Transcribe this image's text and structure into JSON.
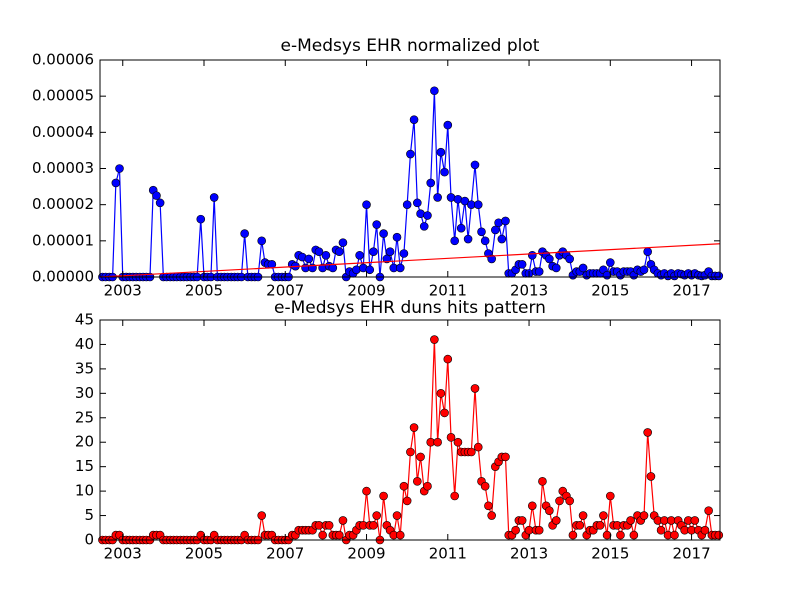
{
  "chart_data": [
    {
      "type": "line",
      "title": "e-Medsys EHR normalized plot",
      "x": [
        2002.5,
        2002.58,
        2002.67,
        2002.75,
        2002.83,
        2002.92,
        2003,
        2003.08,
        2003.17,
        2003.25,
        2003.33,
        2003.42,
        2003.5,
        2003.58,
        2003.67,
        2003.75,
        2003.83,
        2003.92,
        2004,
        2004.08,
        2004.17,
        2004.25,
        2004.33,
        2004.42,
        2004.5,
        2004.58,
        2004.67,
        2004.75,
        2004.83,
        2004.92,
        2005,
        2005.08,
        2005.17,
        2005.25,
        2005.33,
        2005.42,
        2005.5,
        2005.58,
        2005.67,
        2005.75,
        2005.83,
        2005.92,
        2006,
        2006.08,
        2006.17,
        2006.25,
        2006.33,
        2006.42,
        2006.5,
        2006.58,
        2006.67,
        2006.75,
        2006.83,
        2006.92,
        2007,
        2007.08,
        2007.17,
        2007.25,
        2007.33,
        2007.42,
        2007.5,
        2007.58,
        2007.67,
        2007.75,
        2007.83,
        2007.92,
        2008,
        2008.08,
        2008.17,
        2008.25,
        2008.33,
        2008.42,
        2008.5,
        2008.58,
        2008.67,
        2008.75,
        2008.83,
        2008.92,
        2009,
        2009.08,
        2009.17,
        2009.25,
        2009.33,
        2009.42,
        2009.5,
        2009.58,
        2009.67,
        2009.75,
        2009.83,
        2009.92,
        2010,
        2010.08,
        2010.17,
        2010.25,
        2010.33,
        2010.42,
        2010.5,
        2010.58,
        2010.67,
        2010.75,
        2010.83,
        2010.92,
        2011,
        2011.08,
        2011.17,
        2011.25,
        2011.33,
        2011.42,
        2011.5,
        2011.58,
        2011.67,
        2011.75,
        2011.83,
        2011.92,
        2012,
        2012.08,
        2012.17,
        2012.25,
        2012.33,
        2012.42,
        2012.5,
        2012.58,
        2012.67,
        2012.75,
        2012.83,
        2012.92,
        2013,
        2013.08,
        2013.17,
        2013.25,
        2013.33,
        2013.42,
        2013.5,
        2013.58,
        2013.67,
        2013.75,
        2013.83,
        2013.92,
        2014,
        2014.08,
        2014.17,
        2014.25,
        2014.33,
        2014.42,
        2014.5,
        2014.58,
        2014.67,
        2014.75,
        2014.83,
        2014.92,
        2015,
        2015.08,
        2015.17,
        2015.25,
        2015.33,
        2015.42,
        2015.5,
        2015.58,
        2015.67,
        2015.75,
        2015.83,
        2015.92,
        2016,
        2016.08,
        2016.17,
        2016.25,
        2016.33,
        2016.42,
        2016.5,
        2016.58,
        2016.67,
        2016.75,
        2016.83,
        2016.92,
        2017,
        2017.08,
        2017.17,
        2017.25,
        2017.33,
        2017.42,
        2017.5,
        2017.58,
        2017.67
      ],
      "series": [
        {
          "color": "#0000ff",
          "marker": true,
          "values": [
            0,
            0,
            0,
            0,
            2.6e-05,
            3e-05,
            0,
            0,
            0,
            0,
            0,
            0,
            0,
            0,
            0,
            2.4e-05,
            2.25e-05,
            2.05e-05,
            0,
            0,
            0,
            0,
            0,
            0,
            0,
            0,
            0,
            0,
            0,
            1.6e-05,
            0,
            0,
            0,
            2.2e-05,
            0,
            0,
            0,
            0,
            0,
            0,
            0,
            0,
            1.2e-05,
            0,
            0,
            0,
            0,
            1e-05,
            4e-06,
            3.5e-06,
            3.5e-06,
            0,
            0,
            0,
            0,
            0,
            3.5e-06,
            3e-06,
            6e-06,
            5.5e-06,
            2.5e-06,
            5e-06,
            2.5e-06,
            7.5e-06,
            7e-06,
            2.5e-06,
            6e-06,
            3e-06,
            2.5e-06,
            7.5e-06,
            7e-06,
            9.5e-06,
            0,
            1.5e-06,
            1e-06,
            2e-06,
            6e-06,
            2.5e-06,
            2e-05,
            2e-06,
            7e-06,
            1.45e-05,
            0,
            1.2e-05,
            5e-06,
            7e-06,
            2.5e-06,
            1.1e-05,
            2.5e-06,
            6.5e-06,
            2e-05,
            3.4e-05,
            4.35e-05,
            2.05e-05,
            1.75e-05,
            1.4e-05,
            1.7e-05,
            2.6e-05,
            5.15e-05,
            2.2e-05,
            3.45e-05,
            2.9e-05,
            4.2e-05,
            2.2e-05,
            1e-05,
            2.15e-05,
            1.35e-05,
            2.1e-05,
            1.05e-05,
            2e-05,
            3.1e-05,
            2e-05,
            1.25e-05,
            1e-05,
            6.5e-06,
            5e-06,
            1.3e-05,
            1.5e-05,
            1.05e-05,
            1.55e-05,
            1e-06,
            1e-06,
            2e-06,
            3.5e-06,
            3.5e-06,
            1e-06,
            1e-06,
            6e-06,
            1.5e-06,
            1.5e-06,
            7e-06,
            6e-06,
            5e-06,
            3e-06,
            2.5e-06,
            6e-06,
            7e-06,
            6e-06,
            5e-06,
            5e-07,
            1.5e-06,
            1.5e-06,
            2.5e-06,
            5e-07,
            1e-06,
            1e-06,
            1e-06,
            1e-06,
            2e-06,
            5e-07,
            4e-06,
            1.5e-06,
            1.5e-06,
            5e-07,
            1.5e-06,
            1.5e-06,
            1.5e-06,
            5e-07,
            2e-06,
            1.5e-06,
            2e-06,
            7e-06,
            3.5e-06,
            2e-06,
            1e-06,
            5e-07,
            1e-06,
            3e-07,
            1e-06,
            3e-07,
            1e-06,
            8e-07,
            5e-07,
            1e-06,
            5e-07,
            1e-06,
            5e-07,
            3e-07,
            5e-07,
            1.5e-06,
            3e-07,
            3e-07,
            3e-07
          ]
        },
        {
          "color": "#ff0000",
          "marker": false,
          "x": [
            2002.44,
            2017.7
          ],
          "values": [
            0,
            9.2e-06
          ]
        }
      ],
      "xlim": [
        2002.44,
        2017.7
      ],
      "xticks": [
        2003,
        2005,
        2007,
        2009,
        2011,
        2013,
        2015,
        2017
      ],
      "ylim": [
        0,
        6e-05
      ],
      "yticks": [
        {
          "value": 0,
          "label": "0.00000"
        },
        1e-05,
        2e-05,
        3e-05,
        4e-05,
        5e-05,
        6e-05
      ]
    },
    {
      "type": "line",
      "title": "e-Medsys EHR duns hits pattern",
      "x": [
        2002.5,
        2002.58,
        2002.67,
        2002.75,
        2002.83,
        2002.92,
        2003,
        2003.08,
        2003.17,
        2003.25,
        2003.33,
        2003.42,
        2003.5,
        2003.58,
        2003.67,
        2003.75,
        2003.83,
        2003.92,
        2004,
        2004.08,
        2004.17,
        2004.25,
        2004.33,
        2004.42,
        2004.5,
        2004.58,
        2004.67,
        2004.75,
        2004.83,
        2004.92,
        2005,
        2005.08,
        2005.17,
        2005.25,
        2005.33,
        2005.42,
        2005.5,
        2005.58,
        2005.67,
        2005.75,
        2005.83,
        2005.92,
        2006,
        2006.08,
        2006.17,
        2006.25,
        2006.33,
        2006.42,
        2006.5,
        2006.58,
        2006.67,
        2006.75,
        2006.83,
        2006.92,
        2007,
        2007.08,
        2007.17,
        2007.25,
        2007.33,
        2007.42,
        2007.5,
        2007.58,
        2007.67,
        2007.75,
        2007.83,
        2007.92,
        2008,
        2008.08,
        2008.17,
        2008.25,
        2008.33,
        2008.42,
        2008.5,
        2008.58,
        2008.67,
        2008.75,
        2008.83,
        2008.92,
        2009,
        2009.08,
        2009.17,
        2009.25,
        2009.33,
        2009.42,
        2009.5,
        2009.58,
        2009.67,
        2009.75,
        2009.83,
        2009.92,
        2010,
        2010.08,
        2010.17,
        2010.25,
        2010.33,
        2010.42,
        2010.5,
        2010.58,
        2010.67,
        2010.75,
        2010.83,
        2010.92,
        2011,
        2011.08,
        2011.17,
        2011.25,
        2011.33,
        2011.42,
        2011.5,
        2011.58,
        2011.67,
        2011.75,
        2011.83,
        2011.92,
        2012,
        2012.08,
        2012.17,
        2012.25,
        2012.33,
        2012.42,
        2012.5,
        2012.58,
        2012.67,
        2012.75,
        2012.83,
        2012.92,
        2013,
        2013.08,
        2013.17,
        2013.25,
        2013.33,
        2013.42,
        2013.5,
        2013.58,
        2013.67,
        2013.75,
        2013.83,
        2013.92,
        2014,
        2014.08,
        2014.17,
        2014.25,
        2014.33,
        2014.42,
        2014.5,
        2014.58,
        2014.67,
        2014.75,
        2014.83,
        2014.92,
        2015,
        2015.08,
        2015.17,
        2015.25,
        2015.33,
        2015.42,
        2015.5,
        2015.58,
        2015.67,
        2015.75,
        2015.83,
        2015.92,
        2016,
        2016.08,
        2016.17,
        2016.25,
        2016.33,
        2016.42,
        2016.5,
        2016.58,
        2016.67,
        2016.75,
        2016.83,
        2016.92,
        2017,
        2017.08,
        2017.17,
        2017.25,
        2017.33,
        2017.42,
        2017.5,
        2017.58,
        2017.67
      ],
      "series": [
        {
          "color": "#ff0000",
          "marker": true,
          "values": [
            0,
            0,
            0,
            0,
            1,
            1,
            0,
            0,
            0,
            0,
            0,
            0,
            0,
            0,
            0,
            1,
            1,
            1,
            0,
            0,
            0,
            0,
            0,
            0,
            0,
            0,
            0,
            0,
            0,
            1,
            0,
            0,
            0,
            1,
            0,
            0,
            0,
            0,
            0,
            0,
            0,
            0,
            1,
            0,
            0,
            0,
            0,
            5,
            1,
            1,
            1,
            0,
            0,
            0,
            0,
            0,
            1,
            1,
            2,
            2,
            2,
            2,
            2,
            3,
            3,
            1,
            3,
            3,
            1,
            1,
            1,
            4,
            0,
            1,
            1,
            2,
            3,
            3,
            10,
            3,
            3,
            5,
            0,
            9,
            3,
            2,
            1,
            5,
            1,
            11,
            8,
            18,
            23,
            12,
            17,
            10,
            11,
            20,
            41,
            20,
            30,
            26,
            37,
            21,
            9,
            20,
            18,
            18,
            18,
            18,
            31,
            19,
            12,
            11,
            7,
            5,
            15,
            16,
            17,
            17,
            1,
            1,
            2,
            4,
            4,
            1,
            2,
            7,
            2,
            2,
            12,
            7,
            6,
            3,
            4,
            8,
            10,
            9,
            8,
            1,
            3,
            3,
            5,
            1,
            2,
            2,
            3,
            3,
            5,
            1,
            9,
            3,
            3,
            1,
            3,
            3,
            4,
            1,
            5,
            4,
            5,
            22,
            13,
            5,
            4,
            2,
            4,
            1,
            4,
            1,
            4,
            3,
            2,
            4,
            2,
            4,
            2,
            1,
            2,
            6,
            1,
            1,
            1
          ]
        }
      ],
      "xlim": [
        2002.44,
        2017.7
      ],
      "xticks": [
        2003,
        2005,
        2007,
        2009,
        2011,
        2013,
        2015,
        2017
      ],
      "ylim": [
        0,
        45
      ],
      "yticks": [
        0,
        5,
        10,
        15,
        20,
        25,
        30,
        35,
        40,
        45
      ]
    }
  ]
}
